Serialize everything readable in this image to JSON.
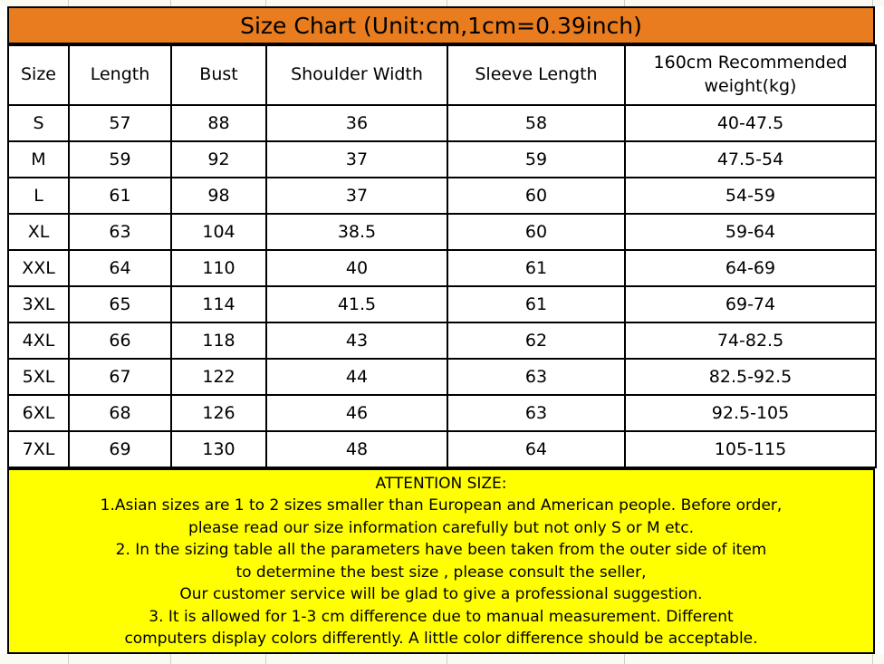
{
  "chart_data": {
    "type": "table",
    "title": "Size Chart (Unit:cm,1cm=0.39inch)",
    "columns": [
      "Size",
      "Length",
      "Bust",
      "Shoulder Width",
      "Sleeve Length",
      "160cm Recommended weight(kg)"
    ],
    "rows": [
      [
        "S",
        "57",
        "88",
        "36",
        "58",
        "40-47.5"
      ],
      [
        "M",
        "59",
        "92",
        "37",
        "59",
        "47.5-54"
      ],
      [
        "L",
        "61",
        "98",
        "37",
        "60",
        "54-59"
      ],
      [
        "XL",
        "63",
        "104",
        "38.5",
        "60",
        "59-64"
      ],
      [
        "XXL",
        "64",
        "110",
        "40",
        "61",
        "64-69"
      ],
      [
        "3XL",
        "65",
        "114",
        "41.5",
        "61",
        "69-74"
      ],
      [
        "4XL",
        "66",
        "118",
        "43",
        "62",
        "74-82.5"
      ],
      [
        "5XL",
        "67",
        "122",
        "44",
        "63",
        "82.5-92.5"
      ],
      [
        "6XL",
        "68",
        "126",
        "46",
        "63",
        "92.5-105"
      ],
      [
        "7XL",
        "69",
        "130",
        "48",
        "64",
        "105-115"
      ]
    ],
    "unit_note": "Unit:cm, 1cm=0.39inch"
  },
  "attention": {
    "lines": [
      "ATTENTION SIZE:",
      "1.Asian sizes are 1 to 2 sizes smaller than European and American people. Before order,",
      "please read our size information carefully but not only S or M etc.",
      "2. In the sizing table all the parameters have been taken from the outer side of item",
      "to determine the best size , please consult the seller,",
      "Our customer service will be glad to give a professional suggestion.",
      "3. It is allowed for 1-3 cm difference due to manual measurement. Different",
      "computers display colors differently. A little color difference should be acceptable."
    ]
  },
  "colors": {
    "title_bg": "#E87C1E",
    "attention_bg": "#FFFF00",
    "border": "#000000"
  }
}
